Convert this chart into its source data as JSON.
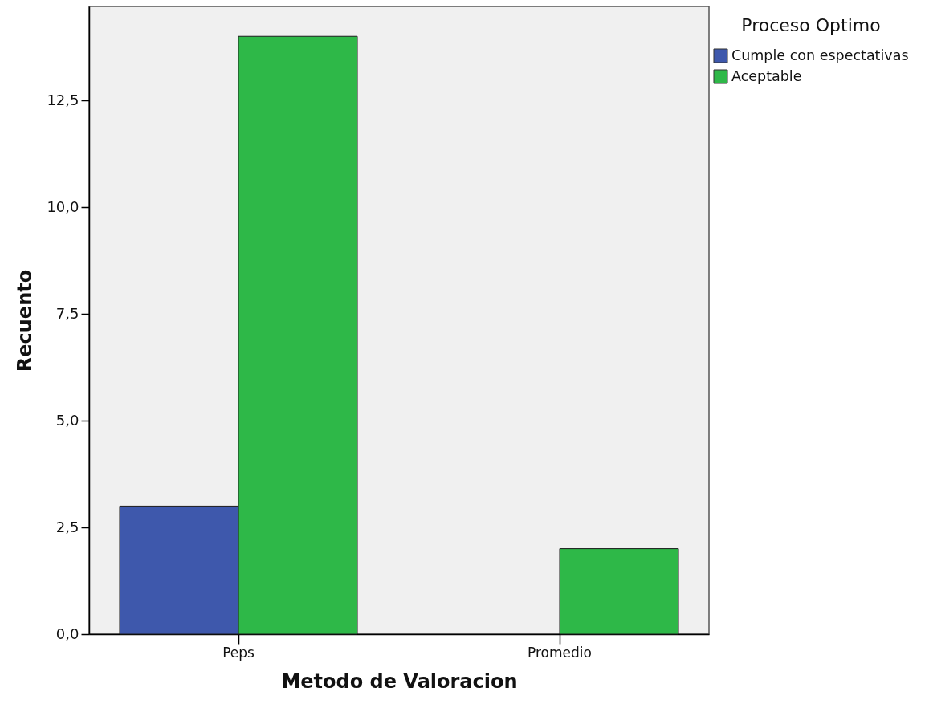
{
  "chart_data": {
    "type": "bar",
    "xlabel": "Metodo de Valoracion",
    "ylabel": "Recuento",
    "legend_title": "Proceso Optimo",
    "categories": [
      "Peps",
      "Promedio"
    ],
    "series": [
      {
        "name": "Cumple con espectativas",
        "color": "#3e58ac",
        "values": [
          3,
          null
        ]
      },
      {
        "name": "Aceptable",
        "color": "#2eb848",
        "values": [
          14,
          2
        ]
      }
    ],
    "ylim": [
      0,
      14.7
    ],
    "yticks": [
      {
        "value": 0,
        "label": "0,0"
      },
      {
        "value": 2.5,
        "label": "2,5"
      },
      {
        "value": 5,
        "label": "5,0"
      },
      {
        "value": 7.5,
        "label": "7,5"
      },
      {
        "value": 10,
        "label": "10,0"
      },
      {
        "value": 12.5,
        "label": "12,5"
      }
    ],
    "legend": "right"
  }
}
